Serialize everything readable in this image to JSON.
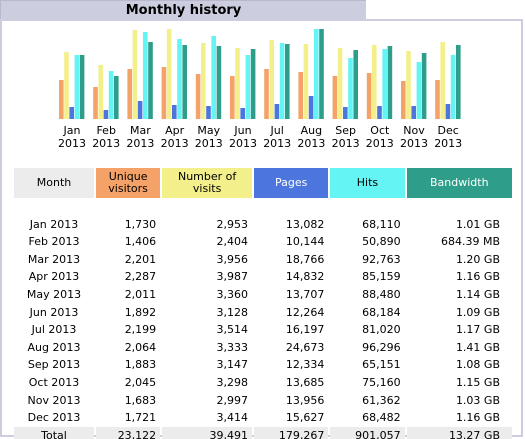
{
  "title": "Monthly history",
  "chart_data": {
    "type": "bar",
    "categories": [
      "Jan 2013",
      "Feb 2013",
      "Mar 2013",
      "Apr 2013",
      "May 2013",
      "Jun 2013",
      "Jul 2013",
      "Aug 2013",
      "Sep 2013",
      "Oct 2013",
      "Nov 2013",
      "Dec 2013"
    ],
    "series": [
      {
        "name": "Unique visitors",
        "values": [
          1730,
          1406,
          2201,
          2287,
          2011,
          1892,
          2199,
          2064,
          1883,
          2045,
          1683,
          1721
        ]
      },
      {
        "name": "Number of visits",
        "values": [
          2953,
          2404,
          3956,
          3987,
          3360,
          3128,
          3514,
          3333,
          3147,
          3298,
          2997,
          3414
        ]
      },
      {
        "name": "Pages",
        "values": [
          13082,
          10144,
          18766,
          14832,
          13707,
          12264,
          16197,
          24673,
          12334,
          13685,
          13956,
          15627
        ]
      },
      {
        "name": "Hits",
        "values": [
          68110,
          50890,
          92763,
          85159,
          88480,
          68184,
          81020,
          96296,
          65151,
          75160,
          61362,
          68482
        ]
      },
      {
        "name": "Bandwidth",
        "values": [
          1.01,
          0.6684,
          1.2,
          1.16,
          1.14,
          1.09,
          1.17,
          1.41,
          1.08,
          1.15,
          1.03,
          1.16
        ]
      }
    ],
    "colors": {
      "uniq": "#f5a268",
      "visits": "#f3ef8b",
      "pages": "#4c76dd",
      "hits": "#65f4f4",
      "bandwidth": "#2e9e8a"
    }
  },
  "table": {
    "headers": {
      "month": "Month",
      "uniq_1": "Unique",
      "uniq_2": "visitors",
      "visits_1": "Number of",
      "visits_2": "visits",
      "pages": "Pages",
      "hits": "Hits",
      "bandwidth": "Bandwidth"
    },
    "rows": [
      {
        "month": "Jan 2013",
        "uniq": "1,730",
        "visits": "2,953",
        "pages": "13,082",
        "hits": "68,110",
        "bw": "1.01 GB"
      },
      {
        "month": "Feb 2013",
        "uniq": "1,406",
        "visits": "2,404",
        "pages": "10,144",
        "hits": "50,890",
        "bw": "684.39 MB"
      },
      {
        "month": "Mar 2013",
        "uniq": "2,201",
        "visits": "3,956",
        "pages": "18,766",
        "hits": "92,763",
        "bw": "1.20 GB"
      },
      {
        "month": "Apr 2013",
        "uniq": "2,287",
        "visits": "3,987",
        "pages": "14,832",
        "hits": "85,159",
        "bw": "1.16 GB"
      },
      {
        "month": "May 2013",
        "uniq": "2,011",
        "visits": "3,360",
        "pages": "13,707",
        "hits": "88,480",
        "bw": "1.14 GB"
      },
      {
        "month": "Jun 2013",
        "uniq": "1,892",
        "visits": "3,128",
        "pages": "12,264",
        "hits": "68,184",
        "bw": "1.09 GB"
      },
      {
        "month": "Jul 2013",
        "uniq": "2,199",
        "visits": "3,514",
        "pages": "16,197",
        "hits": "81,020",
        "bw": "1.17 GB"
      },
      {
        "month": "Aug 2013",
        "uniq": "2,064",
        "visits": "3,333",
        "pages": "24,673",
        "hits": "96,296",
        "bw": "1.41 GB"
      },
      {
        "month": "Sep 2013",
        "uniq": "1,883",
        "visits": "3,147",
        "pages": "12,334",
        "hits": "65,151",
        "bw": "1.08 GB"
      },
      {
        "month": "Oct 2013",
        "uniq": "2,045",
        "visits": "3,298",
        "pages": "13,685",
        "hits": "75,160",
        "bw": "1.15 GB"
      },
      {
        "month": "Nov 2013",
        "uniq": "1,683",
        "visits": "2,997",
        "pages": "13,956",
        "hits": "61,362",
        "bw": "1.03 GB"
      },
      {
        "month": "Dec 2013",
        "uniq": "1,721",
        "visits": "3,414",
        "pages": "15,627",
        "hits": "68,482",
        "bw": "1.16 GB"
      }
    ],
    "total": {
      "month": "Total",
      "uniq": "23,122",
      "visits": "39,491",
      "pages": "179,267",
      "hits": "901,057",
      "bw": "13.27 GB"
    }
  }
}
